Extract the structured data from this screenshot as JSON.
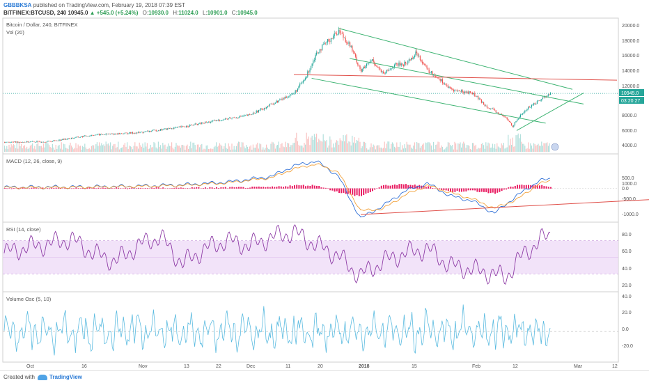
{
  "header": {
    "author": "GBBBKSA",
    "published": "published on TradingView.com, February 19, 2018 07:39 EST",
    "symbol": "BITFINEX:BTCUSD, 240",
    "last": "10945.0",
    "change": "▲ +545.0 (+5.24%)",
    "o_label": "O:",
    "o_value": "10930.0",
    "h_label": "H:",
    "h_value": "11024.0",
    "l_label": "L:",
    "l_value": "10901.0",
    "c_label": "C:",
    "c_value": "10945.0"
  },
  "footer": {
    "created_with": "Created with",
    "brand": "TradingView"
  },
  "colors": {
    "up": "#26a69a",
    "down": "#ef5350",
    "channel": "#3cb371",
    "resistance": "#e0504a",
    "rsi": "#8e3ca6",
    "volosc": "#5bbbe0",
    "macd": "#2f6fd6",
    "signal": "#f2a13a",
    "hist": "#e91e63"
  },
  "chart_data": [
    {
      "type": "candlestick",
      "title": "Bitcoin / Dollar, 240, BITFINEX",
      "subtitle": "Vol (20)",
      "x_ticks": [
        "Oct",
        "16",
        "Nov",
        "13",
        "22",
        "Dec",
        "11",
        "20",
        "2018",
        "15",
        "Feb",
        "12",
        "Mar",
        "12"
      ],
      "y_ticks": [
        20000.0,
        18000.0,
        16000.0,
        14000.0,
        12000.0,
        10000.0,
        8000.0,
        6000.0,
        4000.0
      ],
      "ylim": [
        3000,
        21000
      ],
      "last_price_label": "10945.0",
      "countdown_label": "03:20:27",
      "price_path": [
        [
          0,
          4300
        ],
        [
          20,
          4400
        ],
        [
          40,
          5300
        ],
        [
          60,
          5600
        ],
        [
          80,
          6400
        ],
        [
          100,
          7500
        ],
        [
          110,
          8000
        ],
        [
          120,
          9500
        ],
        [
          130,
          11000
        ],
        [
          135,
          13000
        ],
        [
          140,
          16500
        ],
        [
          145,
          18000
        ],
        [
          150,
          19500
        ],
        [
          155,
          17500
        ],
        [
          160,
          14000
        ],
        [
          165,
          15500
        ],
        [
          170,
          13500
        ],
        [
          175,
          14800
        ],
        [
          180,
          15000
        ],
        [
          185,
          16500
        ],
        [
          190,
          14000
        ],
        [
          195,
          13000
        ],
        [
          200,
          11500
        ],
        [
          205,
          11200
        ],
        [
          210,
          11000
        ],
        [
          215,
          9500
        ],
        [
          220,
          8500
        ],
        [
          225,
          7600
        ],
        [
          228,
          6500
        ],
        [
          231,
          7800
        ],
        [
          235,
          9000
        ],
        [
          240,
          10000
        ],
        [
          245,
          10945
        ]
      ],
      "channel_upper": [
        [
          150,
          19800
        ],
        [
          255,
          11500
        ]
      ],
      "channel_middle": [
        [
          155,
          15700
        ],
        [
          260,
          9500
        ]
      ],
      "channel_lower": [
        [
          138,
          13000
        ],
        [
          243,
          6900
        ]
      ],
      "support_rising": [
        [
          230,
          5900
        ],
        [
          260,
          11000
        ]
      ],
      "resistance": [
        [
          130,
          13500
        ],
        [
          275,
          12750
        ]
      ]
    },
    {
      "type": "line",
      "title": "MACD (12, 26, close, 9)",
      "y_ticks": [
        1000.0,
        500.0,
        0.0,
        -500.0,
        -1000.0
      ],
      "ylim": [
        -1300,
        1300
      ],
      "series": [
        {
          "values": [
            [
              0,
              40
            ],
            [
              40,
              60
            ],
            [
              60,
              90
            ],
            [
              80,
              140
            ],
            [
              100,
              250
            ],
            [
              120,
              480
            ],
            [
              130,
              900
            ],
            [
              140,
              1100
            ],
            [
              150,
              500
            ],
            [
              155,
              -400
            ],
            [
              160,
              -1200
            ],
            [
              170,
              -700
            ],
            [
              180,
              -100
            ],
            [
              190,
              200
            ],
            [
              200,
              -300
            ],
            [
              210,
              -500
            ],
            [
              220,
              -1000
            ],
            [
              230,
              -300
            ],
            [
              240,
              300
            ],
            [
              245,
              380
            ]
          ]
        },
        {
          "values": [
            [
              0,
              30
            ],
            [
              40,
              50
            ],
            [
              60,
              80
            ],
            [
              80,
              120
            ],
            [
              100,
              220
            ],
            [
              120,
              430
            ],
            [
              130,
              780
            ],
            [
              140,
              980
            ],
            [
              150,
              650
            ],
            [
              155,
              -150
            ],
            [
              160,
              -900
            ],
            [
              170,
              -820
            ],
            [
              180,
              -260
            ],
            [
              190,
              120
            ],
            [
              200,
              -170
            ],
            [
              210,
              -420
            ],
            [
              220,
              -800
            ],
            [
              230,
              -450
            ],
            [
              240,
              180
            ],
            [
              245,
              300
            ]
          ]
        }
      ],
      "trendline": [
        [
          160,
          -1050
        ],
        [
          290,
          -450
        ]
      ]
    },
    {
      "type": "line",
      "title": "RSI (14, close)",
      "y_ticks": [
        80.0,
        60.0,
        40.0,
        20.0
      ],
      "ylim": [
        10,
        90
      ],
      "band": [
        30,
        70
      ],
      "series": [
        {
          "values": [
            [
              0,
              55
            ],
            [
              10,
              62
            ],
            [
              20,
              66
            ],
            [
              30,
              72
            ],
            [
              40,
              55
            ],
            [
              50,
              45
            ],
            [
              60,
              64
            ],
            [
              70,
              75
            ],
            [
              80,
              42
            ],
            [
              90,
              60
            ],
            [
              100,
              70
            ],
            [
              110,
              64
            ],
            [
              120,
              74
            ],
            [
              130,
              80
            ],
            [
              140,
              65
            ],
            [
              150,
              52
            ],
            [
              155,
              38
            ],
            [
              160,
              28
            ],
            [
              170,
              45
            ],
            [
              180,
              55
            ],
            [
              190,
              60
            ],
            [
              200,
              40
            ],
            [
              210,
              35
            ],
            [
              220,
              30
            ],
            [
              225,
              25
            ],
            [
              230,
              45
            ],
            [
              240,
              70
            ],
            [
              245,
              76
            ]
          ]
        }
      ]
    },
    {
      "type": "line",
      "title": "Volume Osc (5, 10)",
      "y_ticks": [
        40.0,
        20.0,
        0.0,
        -20.0
      ],
      "ylim": [
        -35,
        45
      ],
      "series": [
        {
          "values": [
            [
              0,
              0
            ],
            [
              245,
              0
            ]
          ]
        }
      ]
    }
  ]
}
